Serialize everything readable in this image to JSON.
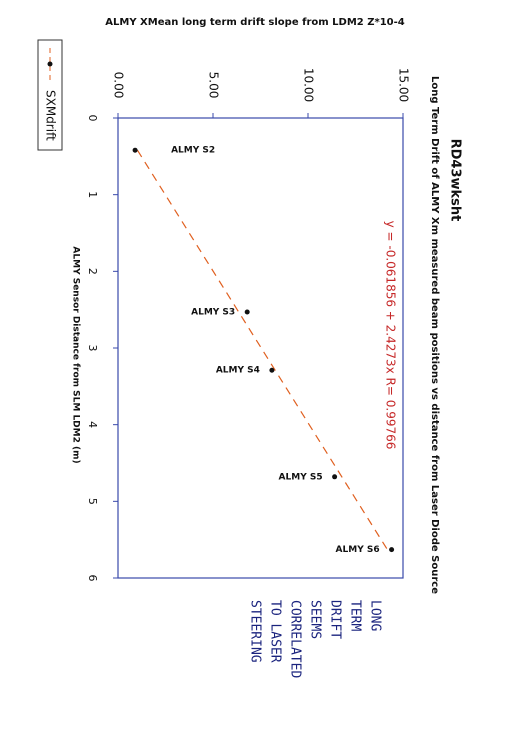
{
  "page_title": "ALMY XMean long term drift slope from LDM2    Z*10-4",
  "chart_data": {
    "type": "scatter",
    "title": "Long Term Drift of ALMY Xm measured beam positions vs distance from Laser Diode Source",
    "sheet": "RD43wksht",
    "x_label": "ALMY Sensor Distance from SLM LDM2 (m)",
    "annotation": "y = -0.061856 + 2.4273x  R= 0.99766",
    "trend_color": "#e06020",
    "series": [
      {
        "name": "SXMdrift",
        "color": "#111111",
        "x": [
          0.42,
          2.53,
          3.29,
          4.68,
          5.63
        ],
        "values": [
          0.9,
          6.8,
          8.1,
          11.4,
          14.4
        ],
        "point_labels": [
          "ALMY S2",
          "ALMY S3",
          "ALMY S4",
          "ALMY S5",
          "ALMY S6"
        ]
      }
    ],
    "xlim": [
      0,
      6
    ],
    "xticks": [
      0,
      1,
      2,
      3,
      4,
      5,
      6
    ],
    "ylim": [
      0,
      15
    ],
    "yticks": [
      {
        "value": 0,
        "label": "0.00"
      },
      {
        "value": 5,
        "label": "5.00"
      },
      {
        "value": 10,
        "label": "10.00"
      },
      {
        "value": 15,
        "label": "15.00"
      }
    ]
  },
  "note": [
    "LONG",
    "TERM",
    "DRIFT",
    "SEEMS",
    "CORRELATED",
    "TO LASER",
    "STEERING"
  ]
}
